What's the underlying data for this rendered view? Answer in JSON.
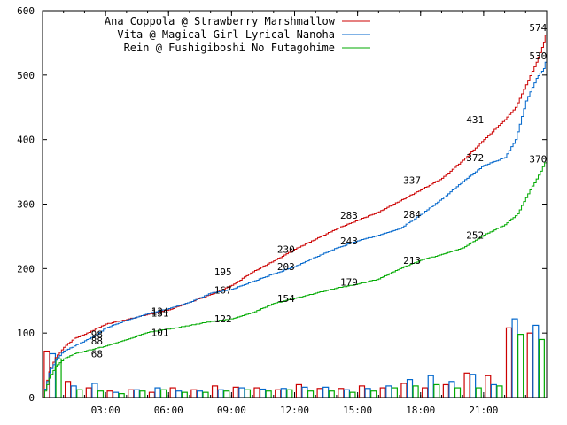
{
  "chart_data": {
    "type": "line",
    "title": "",
    "xlabel": "",
    "ylabel": "",
    "xlim": [
      0,
      24
    ],
    "ylim": [
      0,
      600
    ],
    "grid": false,
    "legend_position": "top-left",
    "x_ticks": [
      {
        "value": 3,
        "label": "03:00"
      },
      {
        "value": 6,
        "label": "06:00"
      },
      {
        "value": 9,
        "label": "09:00"
      },
      {
        "value": 12,
        "label": "12:00"
      },
      {
        "value": 15,
        "label": "15:00"
      },
      {
        "value": 18,
        "label": "18:00"
      },
      {
        "value": 21,
        "label": "21:00"
      }
    ],
    "y_ticks": [
      0,
      100,
      200,
      300,
      400,
      500,
      600
    ],
    "series": [
      {
        "name": "Ana Coppola @ Strawberry Marshmallow",
        "color": "#cc0000",
        "cumulative": [
          [
            0,
            0
          ],
          [
            0.3,
            40
          ],
          [
            0.6,
            62
          ],
          [
            1,
            78
          ],
          [
            1.5,
            92
          ],
          [
            2,
            98
          ],
          [
            2.5,
            106
          ],
          [
            3,
            114
          ],
          [
            4,
            121
          ],
          [
            5,
            129
          ],
          [
            6,
            136
          ],
          [
            7,
            148
          ],
          [
            8,
            160
          ],
          [
            9,
            174
          ],
          [
            10,
            195
          ],
          [
            11,
            212
          ],
          [
            12,
            230
          ],
          [
            13,
            246
          ],
          [
            14,
            262
          ],
          [
            15,
            275
          ],
          [
            16,
            288
          ],
          [
            17,
            305
          ],
          [
            18,
            322
          ],
          [
            19,
            340
          ],
          [
            20,
            368
          ],
          [
            21,
            400
          ],
          [
            22,
            431
          ],
          [
            22.5,
            450
          ],
          [
            23,
            485
          ],
          [
            23.5,
            520
          ],
          [
            23.85,
            550
          ],
          [
            24,
            574
          ]
        ],
        "annotations": [
          {
            "x": 2,
            "y": 98,
            "label": "98"
          },
          {
            "x": 5,
            "y": 134,
            "label": "134"
          },
          {
            "x": 8,
            "y": 195,
            "label": "195"
          },
          {
            "x": 11,
            "y": 230,
            "label": "230"
          },
          {
            "x": 14,
            "y": 283,
            "label": "283"
          },
          {
            "x": 17,
            "y": 337,
            "label": "337"
          },
          {
            "x": 20,
            "y": 431,
            "label": "431"
          },
          {
            "x": 23,
            "y": 574,
            "label": "574"
          }
        ],
        "hourly": [
          72,
          25,
          15,
          10,
          12,
          8,
          15,
          12,
          18,
          16,
          15,
          12,
          20,
          14,
          14,
          18,
          15,
          22,
          15,
          20,
          38,
          34,
          108,
          100
        ]
      },
      {
        "name": "Vita @ Magical Girl Lyrical Nanoha",
        "color": "#0066cc",
        "cumulative": [
          [
            0,
            0
          ],
          [
            0.3,
            38
          ],
          [
            0.6,
            58
          ],
          [
            1,
            72
          ],
          [
            1.5,
            80
          ],
          [
            2,
            88
          ],
          [
            2.5,
            96
          ],
          [
            3,
            108
          ],
          [
            4,
            120
          ],
          [
            5,
            130
          ],
          [
            6,
            138
          ],
          [
            7,
            148
          ],
          [
            8,
            162
          ],
          [
            9,
            168
          ],
          [
            10,
            180
          ],
          [
            11,
            192
          ],
          [
            12,
            203
          ],
          [
            13,
            218
          ],
          [
            14,
            232
          ],
          [
            15,
            243
          ],
          [
            16,
            252
          ],
          [
            17,
            262
          ],
          [
            18,
            284
          ],
          [
            19,
            308
          ],
          [
            20,
            335
          ],
          [
            21,
            360
          ],
          [
            22,
            372
          ],
          [
            22.5,
            400
          ],
          [
            23,
            460
          ],
          [
            23.5,
            495
          ],
          [
            23.85,
            510
          ],
          [
            24,
            530
          ]
        ],
        "annotations": [
          {
            "x": 2,
            "y": 88,
            "label": "88"
          },
          {
            "x": 5,
            "y": 131,
            "label": "131"
          },
          {
            "x": 8,
            "y": 167,
            "label": "167"
          },
          {
            "x": 11,
            "y": 203,
            "label": "203"
          },
          {
            "x": 14,
            "y": 243,
            "label": "243"
          },
          {
            "x": 17,
            "y": 284,
            "label": "284"
          },
          {
            "x": 20,
            "y": 372,
            "label": "372"
          },
          {
            "x": 23,
            "y": 530,
            "label": "530"
          }
        ],
        "hourly": [
          68,
          18,
          22,
          8,
          12,
          15,
          10,
          10,
          12,
          15,
          13,
          14,
          16,
          16,
          12,
          14,
          18,
          28,
          34,
          25,
          36,
          20,
          122,
          112
        ]
      },
      {
        "name": "Rein @ Fushigiboshi No Futagohime",
        "color": "#00aa00",
        "cumulative": [
          [
            0,
            0
          ],
          [
            0.3,
            30
          ],
          [
            0.6,
            48
          ],
          [
            1,
            60
          ],
          [
            1.5,
            68
          ],
          [
            2,
            72
          ],
          [
            3,
            80
          ],
          [
            4,
            90
          ],
          [
            5,
            101
          ],
          [
            6,
            106
          ],
          [
            7,
            112
          ],
          [
            8,
            118
          ],
          [
            9,
            122
          ],
          [
            10,
            132
          ],
          [
            11,
            146
          ],
          [
            12,
            154
          ],
          [
            13,
            162
          ],
          [
            14,
            170
          ],
          [
            15,
            176
          ],
          [
            16,
            184
          ],
          [
            17,
            200
          ],
          [
            18,
            213
          ],
          [
            19,
            222
          ],
          [
            20,
            232
          ],
          [
            21,
            252
          ],
          [
            22,
            268
          ],
          [
            22.6,
            285
          ],
          [
            23,
            310
          ],
          [
            23.6,
            345
          ],
          [
            24,
            370
          ]
        ],
        "annotations": [
          {
            "x": 2,
            "y": 68,
            "label": "68"
          },
          {
            "x": 5,
            "y": 101,
            "label": "101"
          },
          {
            "x": 8,
            "y": 122,
            "label": "122"
          },
          {
            "x": 11,
            "y": 154,
            "label": "154"
          },
          {
            "x": 14,
            "y": 179,
            "label": "179"
          },
          {
            "x": 17,
            "y": 213,
            "label": "213"
          },
          {
            "x": 20,
            "y": 252,
            "label": "252"
          },
          {
            "x": 23,
            "y": 370,
            "label": "370"
          }
        ],
        "hourly": [
          60,
          12,
          10,
          6,
          10,
          12,
          8,
          8,
          10,
          12,
          10,
          12,
          10,
          10,
          8,
          10,
          15,
          18,
          20,
          15,
          15,
          18,
          98,
          90
        ]
      }
    ]
  }
}
